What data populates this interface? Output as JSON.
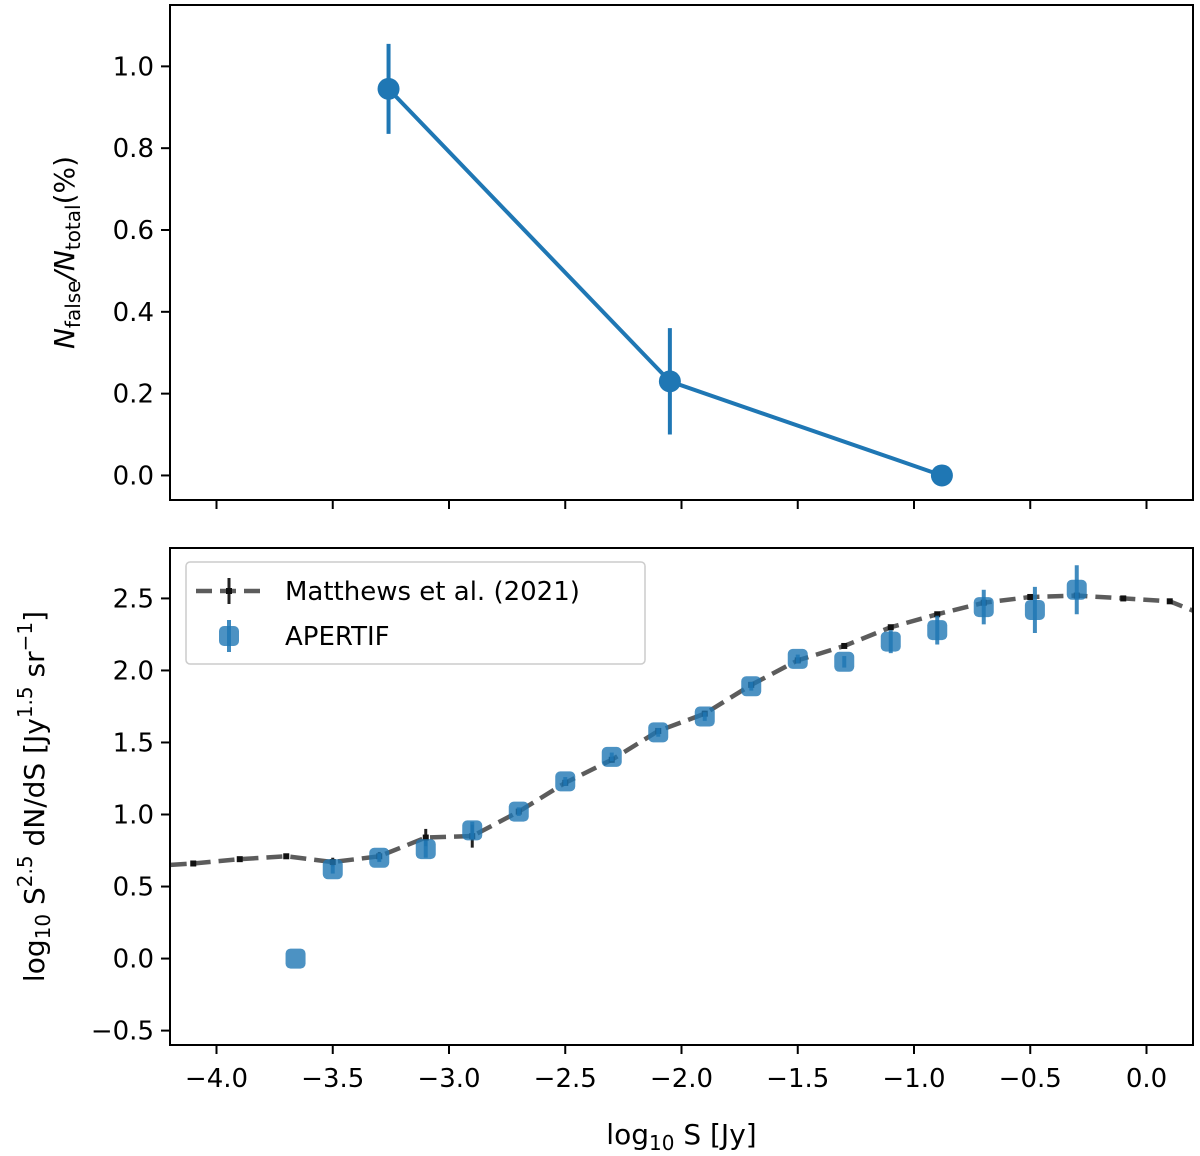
{
  "chart_data": [
    {
      "type": "line",
      "title": "",
      "xlabel": "",
      "ylabel": {
        "main": "N",
        "sub1": "false",
        "mid": "/N",
        "sub2": "total",
        "tail": "(%)"
      },
      "xlim": [
        -4.2,
        0.2
      ],
      "ylim": [
        -0.06,
        1.15
      ],
      "xticks": [
        -4.0,
        -3.5,
        -3.0,
        -2.5,
        -2.0,
        -1.5,
        -1.0,
        -0.5,
        0.0
      ],
      "yticks": [
        0.0,
        0.2,
        0.4,
        0.6,
        0.8,
        1.0
      ],
      "ytick_labels": [
        "0.0",
        "0.2",
        "0.4",
        "0.6",
        "0.8",
        "1.0"
      ],
      "show_xtick_labels": false,
      "grid": false,
      "color": "#1f77b4",
      "series": [
        {
          "x": [
            -3.26,
            -2.05,
            -0.88
          ],
          "y": [
            0.945,
            0.23,
            0.0
          ],
          "yerr": [
            0.11,
            0.13,
            0.0
          ]
        }
      ]
    },
    {
      "type": "scatter",
      "title": "",
      "xlabel": {
        "pre": "log",
        "sub": "10",
        "post": " S [Jy]"
      },
      "ylabel": {
        "pre": "log",
        "sub": "10",
        "mid1": " S",
        "sup1": "2.5",
        "mid2": " dN/dS [Jy",
        "sup2": "1.5",
        "mid3": " sr",
        "sup3": "−1",
        "tail": "]"
      },
      "xlim": [
        -4.2,
        0.2
      ],
      "ylim": [
        -0.6,
        2.85
      ],
      "xticks": [
        -4.0,
        -3.5,
        -3.0,
        -2.5,
        -2.0,
        -1.5,
        -1.0,
        -0.5,
        0.0
      ],
      "xtick_labels": [
        "−4.0",
        "−3.5",
        "−3.0",
        "−2.5",
        "−2.0",
        "−1.5",
        "−1.0",
        "−0.5",
        "0.0"
      ],
      "yticks": [
        -0.5,
        0.0,
        0.5,
        1.0,
        1.5,
        2.0,
        2.5
      ],
      "ytick_labels": [
        "−0.5",
        "0.0",
        "0.5",
        "1.0",
        "1.5",
        "2.0",
        "2.5"
      ],
      "grid": false,
      "legend_position": "top-left",
      "series": [
        {
          "name": "Matthews et al. (2021)",
          "style": "dashed-line-with-errorbars",
          "color": "#404040",
          "x": [
            -4.3,
            -4.1,
            -3.9,
            -3.7,
            -3.5,
            -3.3,
            -3.1,
            -2.9,
            -2.7,
            -2.5,
            -2.3,
            -2.1,
            -1.9,
            -1.7,
            -1.5,
            -1.3,
            -1.1,
            -0.9,
            -0.7,
            -0.5,
            -0.3,
            -0.1,
            0.1,
            0.3
          ],
          "y": [
            0.64,
            0.66,
            0.69,
            0.71,
            0.67,
            0.71,
            0.84,
            0.85,
            1.02,
            1.22,
            1.38,
            1.58,
            1.7,
            1.9,
            2.07,
            2.17,
            2.3,
            2.39,
            2.47,
            2.51,
            2.52,
            2.5,
            2.48,
            2.35
          ],
          "yerr": [
            0.01,
            0.01,
            0.01,
            0.01,
            0.03,
            0.03,
            0.06,
            0.08,
            0.02,
            0.02,
            0.02,
            0.02,
            0.02,
            0.02,
            0.02,
            0.01,
            0.01,
            0.01,
            0.01,
            0.01,
            0.01,
            0.01,
            0.01,
            0.01
          ]
        },
        {
          "name": "APERTIF",
          "style": "square-markers-with-errorbars",
          "color": "#1f77b4",
          "x": [
            -3.66,
            -3.5,
            -3.3,
            -3.1,
            -2.9,
            -2.7,
            -2.5,
            -2.3,
            -2.1,
            -1.9,
            -1.7,
            -1.5,
            -1.3,
            -1.1,
            -0.9,
            -0.7,
            -0.48,
            -0.3
          ],
          "y": [
            0.0,
            0.62,
            0.7,
            0.76,
            0.89,
            1.02,
            1.23,
            1.4,
            1.57,
            1.68,
            1.89,
            2.08,
            2.06,
            2.2,
            2.28,
            2.44,
            2.42,
            2.56
          ],
          "yerr": [
            0.0,
            0.03,
            0.03,
            0.06,
            0.06,
            0.03,
            0.03,
            0.03,
            0.03,
            0.03,
            0.03,
            0.03,
            0.04,
            0.08,
            0.1,
            0.12,
            0.16,
            0.17
          ]
        }
      ]
    }
  ]
}
